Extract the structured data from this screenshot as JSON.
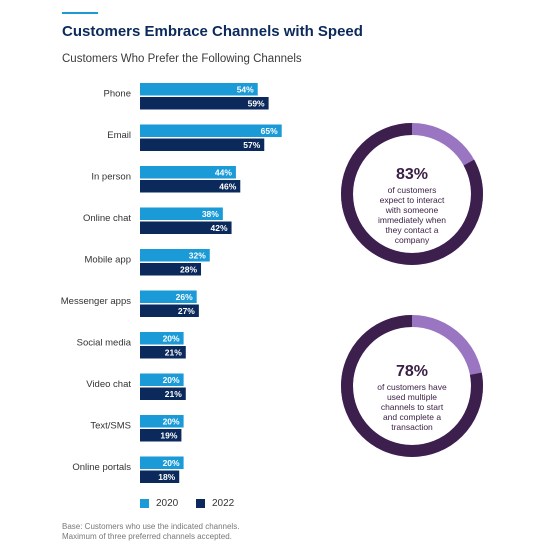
{
  "title": "Customers Embrace Channels with Speed",
  "subtitle": "Customers Who Prefer the Following Channels",
  "colors": {
    "series_2020": "#1a9ad6",
    "series_2022": "#0b2a5b",
    "ring_dark": "#3d1f4d",
    "ring_light": "#9a76c2",
    "accent": "#1a9ad6"
  },
  "chart_data": {
    "type": "bar",
    "orientation": "horizontal",
    "categories": [
      "Phone",
      "Email",
      "In person",
      "Online chat",
      "Mobile app",
      "Messenger apps",
      "Social media",
      "Video chat",
      "Text/SMS",
      "Online portals"
    ],
    "series": [
      {
        "name": "2020",
        "values": [
          54,
          65,
          44,
          38,
          32,
          26,
          20,
          20,
          20,
          20
        ]
      },
      {
        "name": "2022",
        "values": [
          59,
          57,
          46,
          42,
          28,
          27,
          21,
          21,
          19,
          18
        ]
      }
    ],
    "value_suffix": "%",
    "legend_position": "bottom",
    "grid": false
  },
  "stats": [
    {
      "value": 83,
      "pct_label": "83%",
      "description": [
        "of customers",
        "expect to interact",
        "with someone",
        "immediately when",
        "they contact a",
        "company"
      ]
    },
    {
      "value": 78,
      "pct_label": "78%",
      "description": [
        "of customers have",
        "used multiple",
        "channels to start",
        "and complete a",
        "transaction"
      ]
    }
  ],
  "footnote": {
    "line1": "Base: Customers who use the indicated channels.",
    "line2": "Maximum of three preferred channels accepted."
  }
}
